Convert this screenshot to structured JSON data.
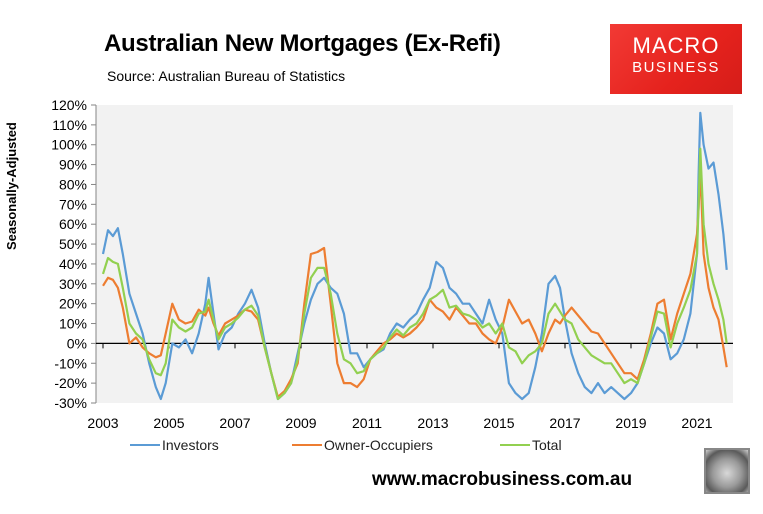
{
  "header": {
    "title": "Australian New Mortgages (Ex-Refi)",
    "subtitle": "Source: Australian Bureau of Statistics"
  },
  "logo": {
    "line1": "MACRO",
    "line2": "BUSINESS"
  },
  "footer": {
    "url": "www.macrobusiness.com.au"
  },
  "colors": {
    "investors": "#5b9bd5",
    "owner_occupiers": "#ed7d31",
    "total": "#92d050",
    "plot_bg": "#f2f2f2"
  },
  "chart_data": {
    "type": "line",
    "title": "Australian New Mortgages (Ex-Refi)",
    "subtitle": "Source: Australian Bureau of Statistics",
    "xlabel": "",
    "ylabel": "Seasonally-Adjusted",
    "ylim": [
      -30,
      120
    ],
    "yticks": [
      "-30%",
      "-20%",
      "-10%",
      "0%",
      "10%",
      "20%",
      "30%",
      "40%",
      "50%",
      "60%",
      "70%",
      "80%",
      "90%",
      "100%",
      "110%",
      "120%"
    ],
    "xticks": [
      "2003",
      "2005",
      "2007",
      "2009",
      "2011",
      "2013",
      "2015",
      "2017",
      "2019",
      "2021"
    ],
    "grid": false,
    "legend_position": "bottom",
    "series": [
      {
        "name": "Investors",
        "color": "#5b9bd5",
        "points": [
          [
            2003.0,
            45
          ],
          [
            2003.15,
            57
          ],
          [
            2003.3,
            54
          ],
          [
            2003.45,
            58
          ],
          [
            2003.6,
            45
          ],
          [
            2003.8,
            25
          ],
          [
            2004.0,
            15
          ],
          [
            2004.2,
            5
          ],
          [
            2004.4,
            -10
          ],
          [
            2004.6,
            -22
          ],
          [
            2004.75,
            -28
          ],
          [
            2004.9,
            -20
          ],
          [
            2005.1,
            0
          ],
          [
            2005.3,
            -2
          ],
          [
            2005.5,
            2
          ],
          [
            2005.7,
            -5
          ],
          [
            2005.9,
            5
          ],
          [
            2006.1,
            20
          ],
          [
            2006.2,
            33
          ],
          [
            2006.35,
            15
          ],
          [
            2006.5,
            -3
          ],
          [
            2006.7,
            5
          ],
          [
            2006.9,
            8
          ],
          [
            2007.1,
            15
          ],
          [
            2007.3,
            20
          ],
          [
            2007.5,
            27
          ],
          [
            2007.7,
            18
          ],
          [
            2007.9,
            0
          ],
          [
            2008.1,
            -15
          ],
          [
            2008.3,
            -28
          ],
          [
            2008.5,
            -25
          ],
          [
            2008.7,
            -20
          ],
          [
            2008.9,
            -5
          ],
          [
            2009.1,
            10
          ],
          [
            2009.3,
            22
          ],
          [
            2009.5,
            30
          ],
          [
            2009.7,
            33
          ],
          [
            2009.9,
            28
          ],
          [
            2010.1,
            25
          ],
          [
            2010.3,
            15
          ],
          [
            2010.5,
            -5
          ],
          [
            2010.7,
            -5
          ],
          [
            2010.9,
            -12
          ],
          [
            2011.1,
            -8
          ],
          [
            2011.3,
            -5
          ],
          [
            2011.5,
            -3
          ],
          [
            2011.7,
            5
          ],
          [
            2011.9,
            10
          ],
          [
            2012.1,
            8
          ],
          [
            2012.3,
            12
          ],
          [
            2012.5,
            15
          ],
          [
            2012.7,
            22
          ],
          [
            2012.9,
            28
          ],
          [
            2013.1,
            41
          ],
          [
            2013.3,
            38
          ],
          [
            2013.5,
            28
          ],
          [
            2013.7,
            25
          ],
          [
            2013.9,
            20
          ],
          [
            2014.1,
            20
          ],
          [
            2014.3,
            15
          ],
          [
            2014.5,
            10
          ],
          [
            2014.7,
            22
          ],
          [
            2014.9,
            12
          ],
          [
            2015.1,
            5
          ],
          [
            2015.3,
            -20
          ],
          [
            2015.5,
            -25
          ],
          [
            2015.7,
            -28
          ],
          [
            2015.9,
            -25
          ],
          [
            2016.1,
            -12
          ],
          [
            2016.3,
            5
          ],
          [
            2016.5,
            30
          ],
          [
            2016.7,
            34
          ],
          [
            2016.85,
            28
          ],
          [
            2017.0,
            12
          ],
          [
            2017.2,
            -5
          ],
          [
            2017.4,
            -15
          ],
          [
            2017.6,
            -22
          ],
          [
            2017.8,
            -25
          ],
          [
            2018.0,
            -20
          ],
          [
            2018.2,
            -25
          ],
          [
            2018.4,
            -22
          ],
          [
            2018.6,
            -25
          ],
          [
            2018.8,
            -28
          ],
          [
            2019.0,
            -25
          ],
          [
            2019.2,
            -20
          ],
          [
            2019.4,
            -10
          ],
          [
            2019.6,
            0
          ],
          [
            2019.8,
            8
          ],
          [
            2020.0,
            5
          ],
          [
            2020.2,
            -8
          ],
          [
            2020.4,
            -5
          ],
          [
            2020.6,
            2
          ],
          [
            2020.8,
            15
          ],
          [
            2021.0,
            45
          ],
          [
            2021.05,
            85
          ],
          [
            2021.1,
            116
          ],
          [
            2021.2,
            100
          ],
          [
            2021.35,
            88
          ],
          [
            2021.5,
            91
          ],
          [
            2021.65,
            75
          ],
          [
            2021.8,
            55
          ],
          [
            2021.9,
            37
          ]
        ]
      },
      {
        "name": "Owner-Occupiers",
        "color": "#ed7d31",
        "points": [
          [
            2003.0,
            29
          ],
          [
            2003.15,
            33
          ],
          [
            2003.3,
            32
          ],
          [
            2003.45,
            28
          ],
          [
            2003.6,
            18
          ],
          [
            2003.8,
            0
          ],
          [
            2004.0,
            3
          ],
          [
            2004.2,
            -2
          ],
          [
            2004.4,
            -5
          ],
          [
            2004.6,
            -7
          ],
          [
            2004.75,
            -6
          ],
          [
            2004.9,
            5
          ],
          [
            2005.1,
            20
          ],
          [
            2005.3,
            12
          ],
          [
            2005.5,
            10
          ],
          [
            2005.7,
            11
          ],
          [
            2005.9,
            17
          ],
          [
            2006.1,
            14
          ],
          [
            2006.2,
            18
          ],
          [
            2006.35,
            10
          ],
          [
            2006.5,
            4
          ],
          [
            2006.7,
            10
          ],
          [
            2006.9,
            12
          ],
          [
            2007.1,
            14
          ],
          [
            2007.3,
            17
          ],
          [
            2007.5,
            16
          ],
          [
            2007.7,
            12
          ],
          [
            2007.9,
            -2
          ],
          [
            2008.1,
            -15
          ],
          [
            2008.3,
            -27
          ],
          [
            2008.5,
            -24
          ],
          [
            2008.7,
            -18
          ],
          [
            2008.9,
            -10
          ],
          [
            2009.1,
            20
          ],
          [
            2009.3,
            45
          ],
          [
            2009.5,
            46
          ],
          [
            2009.7,
            48
          ],
          [
            2009.9,
            20
          ],
          [
            2010.1,
            -10
          ],
          [
            2010.3,
            -20
          ],
          [
            2010.5,
            -20
          ],
          [
            2010.7,
            -22
          ],
          [
            2010.9,
            -18
          ],
          [
            2011.1,
            -8
          ],
          [
            2011.3,
            -4
          ],
          [
            2011.5,
            0
          ],
          [
            2011.7,
            2
          ],
          [
            2011.9,
            5
          ],
          [
            2012.1,
            3
          ],
          [
            2012.3,
            5
          ],
          [
            2012.5,
            8
          ],
          [
            2012.7,
            12
          ],
          [
            2012.9,
            22
          ],
          [
            2013.1,
            18
          ],
          [
            2013.3,
            16
          ],
          [
            2013.5,
            12
          ],
          [
            2013.7,
            18
          ],
          [
            2013.9,
            14
          ],
          [
            2014.1,
            10
          ],
          [
            2014.3,
            10
          ],
          [
            2014.5,
            5
          ],
          [
            2014.7,
            2
          ],
          [
            2014.9,
            0
          ],
          [
            2015.1,
            8
          ],
          [
            2015.3,
            22
          ],
          [
            2015.5,
            16
          ],
          [
            2015.7,
            10
          ],
          [
            2015.9,
            12
          ],
          [
            2016.1,
            5
          ],
          [
            2016.3,
            -4
          ],
          [
            2016.5,
            5
          ],
          [
            2016.7,
            12
          ],
          [
            2016.85,
            10
          ],
          [
            2017.0,
            14
          ],
          [
            2017.2,
            18
          ],
          [
            2017.4,
            14
          ],
          [
            2017.6,
            10
          ],
          [
            2017.8,
            6
          ],
          [
            2018.0,
            5
          ],
          [
            2018.2,
            0
          ],
          [
            2018.4,
            -5
          ],
          [
            2018.6,
            -10
          ],
          [
            2018.8,
            -15
          ],
          [
            2019.0,
            -15
          ],
          [
            2019.2,
            -18
          ],
          [
            2019.4,
            -8
          ],
          [
            2019.6,
            5
          ],
          [
            2019.8,
            20
          ],
          [
            2020.0,
            22
          ],
          [
            2020.2,
            2
          ],
          [
            2020.4,
            15
          ],
          [
            2020.6,
            25
          ],
          [
            2020.8,
            35
          ],
          [
            2021.0,
            55
          ],
          [
            2021.05,
            68
          ],
          [
            2021.1,
            88
          ],
          [
            2021.2,
            45
          ],
          [
            2021.35,
            28
          ],
          [
            2021.5,
            18
          ],
          [
            2021.65,
            12
          ],
          [
            2021.8,
            -2
          ],
          [
            2021.9,
            -12
          ]
        ]
      },
      {
        "name": "Total",
        "color": "#92d050",
        "points": [
          [
            2003.0,
            35
          ],
          [
            2003.15,
            43
          ],
          [
            2003.3,
            41
          ],
          [
            2003.45,
            40
          ],
          [
            2003.6,
            28
          ],
          [
            2003.8,
            10
          ],
          [
            2004.0,
            5
          ],
          [
            2004.2,
            2
          ],
          [
            2004.4,
            -8
          ],
          [
            2004.6,
            -15
          ],
          [
            2004.75,
            -16
          ],
          [
            2004.9,
            -10
          ],
          [
            2005.1,
            12
          ],
          [
            2005.3,
            8
          ],
          [
            2005.5,
            6
          ],
          [
            2005.7,
            8
          ],
          [
            2005.9,
            15
          ],
          [
            2006.1,
            16
          ],
          [
            2006.2,
            22
          ],
          [
            2006.35,
            12
          ],
          [
            2006.5,
            2
          ],
          [
            2006.7,
            8
          ],
          [
            2006.9,
            10
          ],
          [
            2007.1,
            13
          ],
          [
            2007.3,
            17
          ],
          [
            2007.5,
            19
          ],
          [
            2007.7,
            14
          ],
          [
            2007.9,
            -2
          ],
          [
            2008.1,
            -15
          ],
          [
            2008.3,
            -28
          ],
          [
            2008.5,
            -25
          ],
          [
            2008.7,
            -20
          ],
          [
            2008.9,
            -8
          ],
          [
            2009.1,
            15
          ],
          [
            2009.3,
            33
          ],
          [
            2009.5,
            38
          ],
          [
            2009.7,
            38
          ],
          [
            2009.9,
            25
          ],
          [
            2010.1,
            5
          ],
          [
            2010.3,
            -8
          ],
          [
            2010.5,
            -10
          ],
          [
            2010.7,
            -15
          ],
          [
            2010.9,
            -14
          ],
          [
            2011.1,
            -8
          ],
          [
            2011.3,
            -5
          ],
          [
            2011.5,
            -2
          ],
          [
            2011.7,
            3
          ],
          [
            2011.9,
            7
          ],
          [
            2012.1,
            4
          ],
          [
            2012.3,
            8
          ],
          [
            2012.5,
            10
          ],
          [
            2012.7,
            15
          ],
          [
            2012.9,
            22
          ],
          [
            2013.1,
            24
          ],
          [
            2013.3,
            27
          ],
          [
            2013.5,
            18
          ],
          [
            2013.7,
            19
          ],
          [
            2013.9,
            15
          ],
          [
            2014.1,
            14
          ],
          [
            2014.3,
            12
          ],
          [
            2014.5,
            8
          ],
          [
            2014.7,
            10
          ],
          [
            2014.9,
            5
          ],
          [
            2015.1,
            10
          ],
          [
            2015.3,
            -2
          ],
          [
            2015.5,
            -4
          ],
          [
            2015.7,
            -10
          ],
          [
            2015.9,
            -6
          ],
          [
            2016.1,
            -4
          ],
          [
            2016.3,
            0
          ],
          [
            2016.5,
            15
          ],
          [
            2016.7,
            20
          ],
          [
            2016.85,
            16
          ],
          [
            2017.0,
            12
          ],
          [
            2017.2,
            10
          ],
          [
            2017.4,
            2
          ],
          [
            2017.6,
            -2
          ],
          [
            2017.8,
            -6
          ],
          [
            2018.0,
            -8
          ],
          [
            2018.2,
            -10
          ],
          [
            2018.4,
            -10
          ],
          [
            2018.6,
            -15
          ],
          [
            2018.8,
            -20
          ],
          [
            2019.0,
            -18
          ],
          [
            2019.2,
            -20
          ],
          [
            2019.4,
            -10
          ],
          [
            2019.6,
            3
          ],
          [
            2019.8,
            16
          ],
          [
            2020.0,
            15
          ],
          [
            2020.2,
            -2
          ],
          [
            2020.4,
            10
          ],
          [
            2020.6,
            18
          ],
          [
            2020.8,
            27
          ],
          [
            2021.0,
            45
          ],
          [
            2021.05,
            70
          ],
          [
            2021.1,
            98
          ],
          [
            2021.2,
            60
          ],
          [
            2021.35,
            40
          ],
          [
            2021.5,
            30
          ],
          [
            2021.65,
            22
          ],
          [
            2021.8,
            12
          ],
          [
            2021.9,
            0
          ]
        ]
      }
    ]
  }
}
